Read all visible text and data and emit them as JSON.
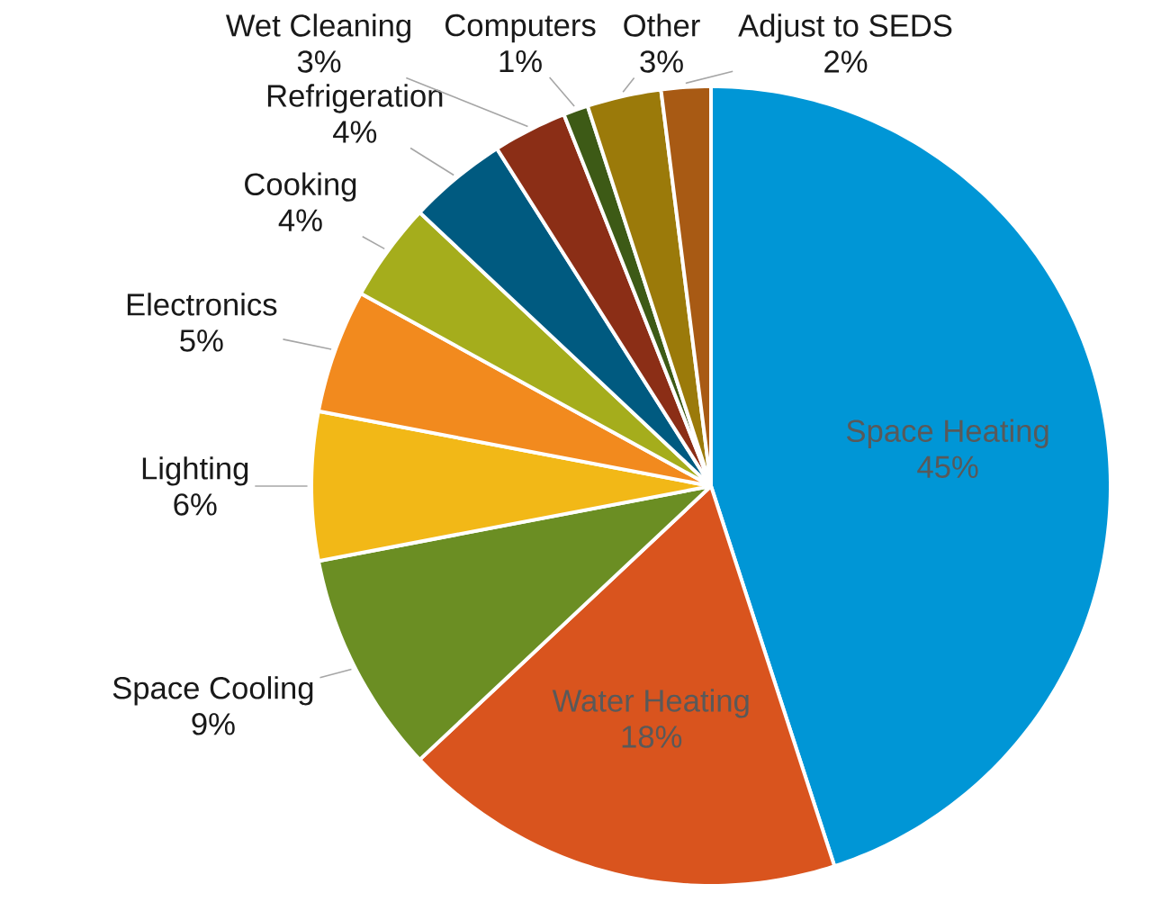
{
  "chart_data": {
    "type": "pie",
    "categories": [
      "Space Heating",
      "Water Heating",
      "Space Cooling",
      "Lighting",
      "Electronics",
      "Cooking",
      "Refrigeration",
      "Wet Cleaning",
      "Computers",
      "Other",
      "Adjust to SEDS"
    ],
    "values": [
      45,
      18,
      9,
      6,
      5,
      4,
      4,
      3,
      1,
      3,
      2
    ],
    "value_labels": [
      "45%",
      "18%",
      "9%",
      "6%",
      "5%",
      "4%",
      "4%",
      "3%",
      "1%",
      "3%",
      "2%"
    ],
    "colors": [
      "#0096d6",
      "#d9541e",
      "#6b8e23",
      "#f2b817",
      "#f28a1e",
      "#a5ad1c",
      "#005a80",
      "#8b2e16",
      "#3d5a16",
      "#9b7a0a",
      "#a85a14"
    ]
  }
}
